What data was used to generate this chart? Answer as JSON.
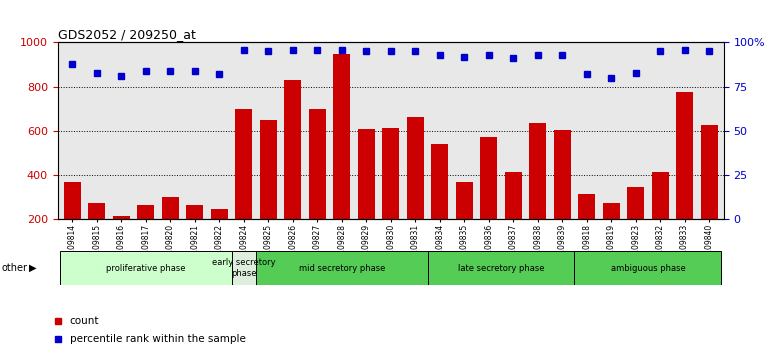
{
  "title": "GDS2052 / 209250_at",
  "samples": [
    "GSM109814",
    "GSM109815",
    "GSM109816",
    "GSM109817",
    "GSM109820",
    "GSM109821",
    "GSM109822",
    "GSM109824",
    "GSM109825",
    "GSM109826",
    "GSM109827",
    "GSM109828",
    "GSM109829",
    "GSM109830",
    "GSM109831",
    "GSM109834",
    "GSM109835",
    "GSM109836",
    "GSM109837",
    "GSM109838",
    "GSM109839",
    "GSM109818",
    "GSM109819",
    "GSM109823",
    "GSM109832",
    "GSM109833",
    "GSM109840"
  ],
  "count_values": [
    370,
    275,
    215,
    265,
    300,
    265,
    248,
    700,
    650,
    830,
    700,
    950,
    610,
    615,
    665,
    540,
    368,
    575,
    415,
    635,
    605,
    315,
    275,
    345,
    415,
    775,
    625
  ],
  "percentile_values": [
    88,
    83,
    81,
    84,
    84,
    84,
    82,
    96,
    95,
    96,
    96,
    96,
    95,
    95,
    95,
    93,
    92,
    93,
    91,
    93,
    93,
    82,
    80,
    83,
    95,
    96,
    95
  ],
  "phase_defs": [
    {
      "label": "proliferative phase",
      "start": 0,
      "end": 7,
      "color": "#ccffcc"
    },
    {
      "label": "early secretory\nphase",
      "start": 7,
      "end": 8,
      "color": "#ddeedd"
    },
    {
      "label": "mid secretory phase",
      "start": 8,
      "end": 15,
      "color": "#55cc55"
    },
    {
      "label": "late secretory phase",
      "start": 15,
      "end": 21,
      "color": "#55cc55"
    },
    {
      "label": "ambiguous phase",
      "start": 21,
      "end": 27,
      "color": "#55cc55"
    }
  ],
  "bar_color": "#cc0000",
  "dot_color": "#0000cc",
  "ylim_left": [
    200,
    1000
  ],
  "ylim_right": [
    0,
    100
  ],
  "yticks_left": [
    200,
    400,
    600,
    800,
    1000
  ],
  "yticks_right": [
    0,
    25,
    50,
    75,
    100
  ],
  "ytick_labels_right": [
    "0",
    "25",
    "50",
    "75",
    "100%"
  ],
  "bg_color": "#e8e8e8",
  "grid_color": "black"
}
